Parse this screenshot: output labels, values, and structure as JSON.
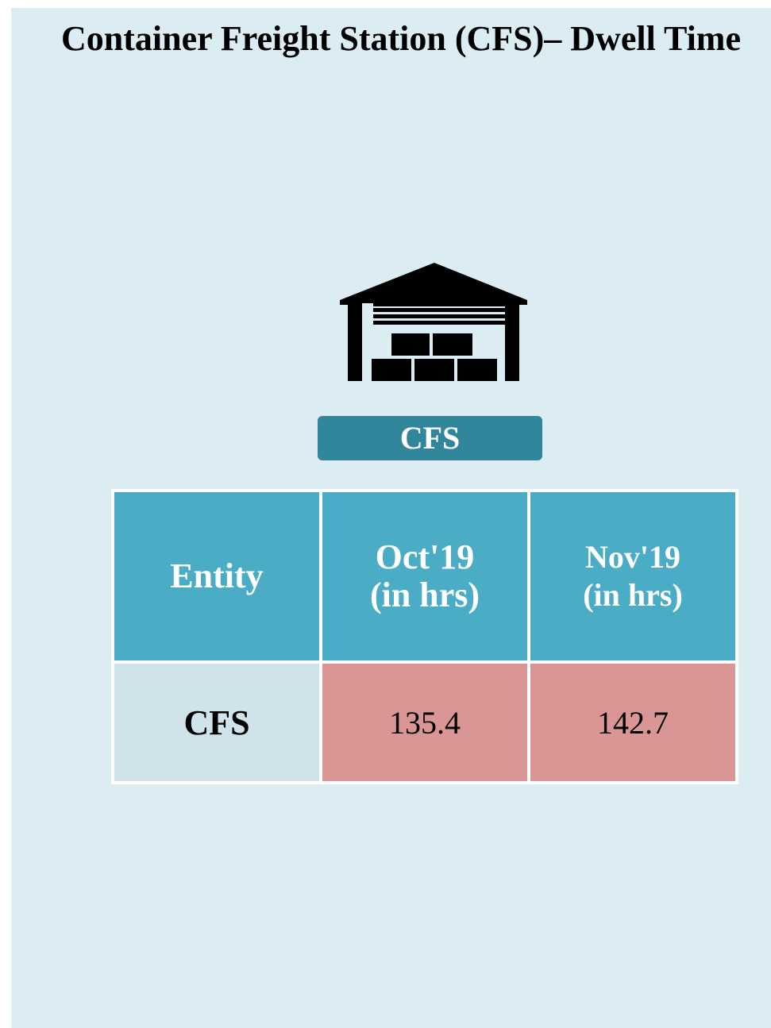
{
  "title": "Container Freight Station (CFS)– Dwell Time",
  "badge": "CFS",
  "table": {
    "header": [
      "Entity",
      "Oct'19\n(in hrs)",
      "Nov'19\n(in hrs)"
    ],
    "rows": [
      [
        "CFS",
        135.4,
        142.7
      ]
    ]
  }
}
